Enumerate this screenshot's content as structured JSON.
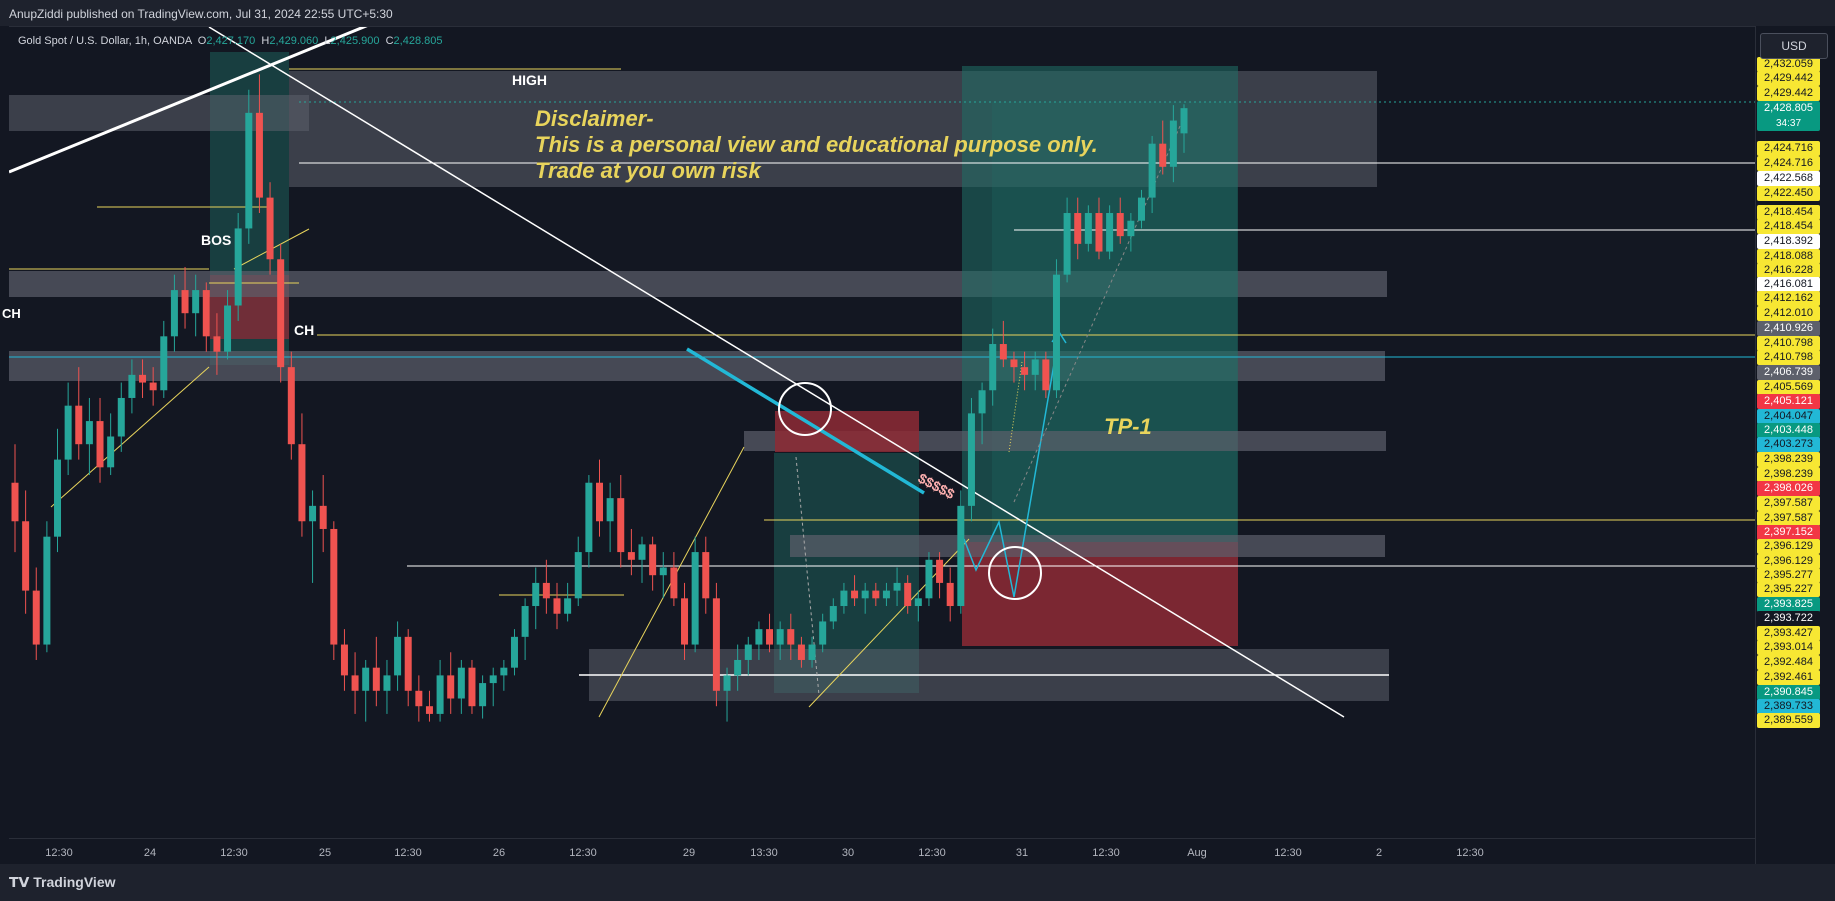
{
  "header": {
    "publisher": "AnupZiddi published on TradingView.com, Jul 31, 2024 22:55 UTC+5:30"
  },
  "legend": {
    "symbol": "Gold Spot / U.S. Dollar, 1h, OANDA",
    "o_label": "O",
    "o_value": "2,427.170",
    "h_label": "H",
    "h_value": "2,429.060",
    "l_label": "L",
    "l_value": "2,425.900",
    "c_label": "C",
    "c_value": "2,428.805"
  },
  "currency_button": "USD",
  "footer": {
    "brand": "TradingView"
  },
  "annotations": {
    "disclaimer_title": "Disclaimer-",
    "disclaimer_line1": "This is a personal view and educational purpose only.",
    "disclaimer_line2": "Trade at you own risk",
    "high": "HIGH",
    "bos": "BOS",
    "ch": "CH",
    "ch_left": "CH",
    "tp1": "TP-1",
    "liquidity": "$$$$$"
  },
  "colors": {
    "background": "#131722",
    "up_candle": "#26a69a",
    "down_candle": "#ef5350",
    "zone_gray": "#5d606b",
    "profit_zone": "#1f6f66",
    "loss_zone": "#8e2a35",
    "annotation_yellow": "#e8d45c",
    "trend_cyan": "#22b8d6"
  },
  "price_labels": [
    {
      "text": "2,432.059",
      "bg": "#f7e733",
      "fg": "#131722"
    },
    {
      "text": "2,429.442",
      "bg": "#f7e733",
      "fg": "#131722"
    },
    {
      "text": "2,429.442",
      "bg": "#f7e733",
      "fg": "#131722"
    },
    {
      "text": "2,428.805",
      "bg": "#089981",
      "fg": "#ffffff",
      "countdown": "34:37"
    },
    {
      "text": "2,424.716",
      "bg": "#f7e733",
      "fg": "#131722"
    },
    {
      "text": "2,424.716",
      "bg": "#f7e733",
      "fg": "#131722"
    },
    {
      "text": "2,422.568",
      "bg": "#ffffff",
      "fg": "#131722"
    },
    {
      "text": "2,422.450",
      "bg": "#f7e733",
      "fg": "#131722"
    },
    {
      "text": "2,418.454",
      "bg": "#f7e733",
      "fg": "#131722"
    },
    {
      "text": "2,418.454",
      "bg": "#f7e733",
      "fg": "#131722"
    },
    {
      "text": "2,418.392",
      "bg": "#ffffff",
      "fg": "#131722"
    },
    {
      "text": "2,418.088",
      "bg": "#f7e733",
      "fg": "#131722"
    },
    {
      "text": "2,416.228",
      "bg": "#f7e733",
      "fg": "#131722"
    },
    {
      "text": "2,416.081",
      "bg": "#ffffff",
      "fg": "#131722"
    },
    {
      "text": "2,412.162",
      "bg": "#f7e733",
      "fg": "#131722"
    },
    {
      "text": "2,412.010",
      "bg": "#f7e733",
      "fg": "#131722"
    },
    {
      "text": "2,410.926",
      "bg": "#5d606b",
      "fg": "#ffffff"
    },
    {
      "text": "2,410.798",
      "bg": "#f7e733",
      "fg": "#131722"
    },
    {
      "text": "2,410.798",
      "bg": "#f7e733",
      "fg": "#131722"
    },
    {
      "text": "2,406.739",
      "bg": "#5d606b",
      "fg": "#ffffff"
    },
    {
      "text": "2,405.569",
      "bg": "#f7e733",
      "fg": "#131722"
    },
    {
      "text": "2,405.121",
      "bg": "#f23645",
      "fg": "#ffffff"
    },
    {
      "text": "2,404.047",
      "bg": "#22b8d6",
      "fg": "#131722"
    },
    {
      "text": "2,403.448",
      "bg": "#089981",
      "fg": "#ffffff"
    },
    {
      "text": "2,403.273",
      "bg": "#22b8d6",
      "fg": "#131722"
    },
    {
      "text": "2,398.239",
      "bg": "#f7e733",
      "fg": "#131722"
    },
    {
      "text": "2,398.239",
      "bg": "#f7e733",
      "fg": "#131722"
    },
    {
      "text": "2,398.026",
      "bg": "#f23645",
      "fg": "#ffffff"
    },
    {
      "text": "2,397.587",
      "bg": "#f7e733",
      "fg": "#131722"
    },
    {
      "text": "2,397.587",
      "bg": "#f7e733",
      "fg": "#131722"
    },
    {
      "text": "2,397.152",
      "bg": "#f23645",
      "fg": "#ffffff"
    },
    {
      "text": "2,396.129",
      "bg": "#f7e733",
      "fg": "#131722"
    },
    {
      "text": "2,396.129",
      "bg": "#f7e733",
      "fg": "#131722"
    },
    {
      "text": "2,395.277",
      "bg": "#f7e733",
      "fg": "#131722"
    },
    {
      "text": "2,395.227",
      "bg": "#f7e733",
      "fg": "#131722"
    },
    {
      "text": "2,393.825",
      "bg": "#089981",
      "fg": "#ffffff"
    },
    {
      "text": "2,393.722",
      "bg": "#131722",
      "fg": "#ffffff"
    },
    {
      "text": "2,393.427",
      "bg": "#f7e733",
      "fg": "#131722"
    },
    {
      "text": "2,393.014",
      "bg": "#f7e733",
      "fg": "#131722"
    },
    {
      "text": "2,392.484",
      "bg": "#f7e733",
      "fg": "#131722"
    },
    {
      "text": "2,392.461",
      "bg": "#f7e733",
      "fg": "#131722"
    },
    {
      "text": "2,390.845",
      "bg": "#089981",
      "fg": "#ffffff"
    },
    {
      "text": "2,389.733",
      "bg": "#22b8d6",
      "fg": "#131722"
    },
    {
      "text": "2,389.559",
      "bg": "#f7e733",
      "fg": "#131722"
    }
  ],
  "chart_data": {
    "type": "candlestick",
    "symbol": "Gold Spot / U.S. Dollar",
    "interval": "1h",
    "exchange": "OANDA",
    "currency": "USD",
    "time_ticks": [
      "12:30",
      "24",
      "12:30",
      "25",
      "12:30",
      "26",
      "12:30",
      "29",
      "13:30",
      "30",
      "12:30",
      "31",
      "12:30",
      "Aug",
      "12:30",
      "2",
      "12:30"
    ],
    "last_close": 2428.805,
    "candles": [
      {
        "o": 2404.5,
        "h": 2407.0,
        "l": 2400.0,
        "c": 2402.0
      },
      {
        "o": 2402.0,
        "h": 2404.0,
        "l": 2396.0,
        "c": 2397.5
      },
      {
        "o": 2397.5,
        "h": 2399.0,
        "l": 2393.0,
        "c": 2394.0
      },
      {
        "o": 2394.0,
        "h": 2402.0,
        "l": 2393.5,
        "c": 2401.0
      },
      {
        "o": 2401.0,
        "h": 2408.0,
        "l": 2400.0,
        "c": 2406.0
      },
      {
        "o": 2406.0,
        "h": 2411.0,
        "l": 2405.0,
        "c": 2409.5
      },
      {
        "o": 2409.5,
        "h": 2412.0,
        "l": 2406.0,
        "c": 2407.0
      },
      {
        "o": 2407.0,
        "h": 2410.0,
        "l": 2405.0,
        "c": 2408.5
      },
      {
        "o": 2408.5,
        "h": 2410.0,
        "l": 2404.5,
        "c": 2405.5
      },
      {
        "o": 2405.5,
        "h": 2409.0,
        "l": 2405.0,
        "c": 2407.5
      },
      {
        "o": 2407.5,
        "h": 2411.0,
        "l": 2406.5,
        "c": 2410.0
      },
      {
        "o": 2410.0,
        "h": 2412.5,
        "l": 2409.0,
        "c": 2411.5
      },
      {
        "o": 2411.5,
        "h": 2412.5,
        "l": 2410.0,
        "c": 2411.0
      },
      {
        "o": 2411.0,
        "h": 2412.0,
        "l": 2409.5,
        "c": 2410.5
      },
      {
        "o": 2410.5,
        "h": 2415.0,
        "l": 2410.0,
        "c": 2414.0
      },
      {
        "o": 2414.0,
        "h": 2418.0,
        "l": 2413.0,
        "c": 2417.0
      },
      {
        "o": 2417.0,
        "h": 2418.5,
        "l": 2414.5,
        "c": 2415.5
      },
      {
        "o": 2415.5,
        "h": 2418.0,
        "l": 2414.0,
        "c": 2417.0
      },
      {
        "o": 2417.0,
        "h": 2417.5,
        "l": 2413.0,
        "c": 2414.0
      },
      {
        "o": 2414.0,
        "h": 2415.5,
        "l": 2411.5,
        "c": 2413.0
      },
      {
        "o": 2413.0,
        "h": 2417.0,
        "l": 2412.5,
        "c": 2416.0
      },
      {
        "o": 2416.0,
        "h": 2422.0,
        "l": 2415.0,
        "c": 2421.0
      },
      {
        "o": 2421.0,
        "h": 2430.0,
        "l": 2420.0,
        "c": 2428.5
      },
      {
        "o": 2428.5,
        "h": 2431.0,
        "l": 2422.0,
        "c": 2423.0
      },
      {
        "o": 2423.0,
        "h": 2424.0,
        "l": 2418.0,
        "c": 2419.0
      },
      {
        "o": 2419.0,
        "h": 2420.0,
        "l": 2411.0,
        "c": 2412.0
      },
      {
        "o": 2412.0,
        "h": 2413.0,
        "l": 2406.0,
        "c": 2407.0
      },
      {
        "o": 2407.0,
        "h": 2409.0,
        "l": 2401.0,
        "c": 2402.0
      },
      {
        "o": 2402.0,
        "h": 2404.0,
        "l": 2398.0,
        "c": 2403.0
      },
      {
        "o": 2403.0,
        "h": 2405.0,
        "l": 2400.0,
        "c": 2401.5
      },
      {
        "o": 2401.5,
        "h": 2402.0,
        "l": 2393.0,
        "c": 2394.0
      },
      {
        "o": 2394.0,
        "h": 2395.0,
        "l": 2391.0,
        "c": 2392.0
      },
      {
        "o": 2392.0,
        "h": 2393.5,
        "l": 2389.5,
        "c": 2391.0
      },
      {
        "o": 2391.0,
        "h": 2393.0,
        "l": 2389.0,
        "c": 2392.5
      },
      {
        "o": 2392.5,
        "h": 2394.5,
        "l": 2390.0,
        "c": 2391.0
      },
      {
        "o": 2391.0,
        "h": 2393.0,
        "l": 2389.5,
        "c": 2392.0
      },
      {
        "o": 2392.0,
        "h": 2395.5,
        "l": 2391.0,
        "c": 2394.5
      },
      {
        "o": 2394.5,
        "h": 2395.0,
        "l": 2390.0,
        "c": 2391.0
      },
      {
        "o": 2391.0,
        "h": 2392.0,
        "l": 2389.0,
        "c": 2390.0
      },
      {
        "o": 2390.0,
        "h": 2391.0,
        "l": 2389.0,
        "c": 2389.5
      },
      {
        "o": 2389.5,
        "h": 2393.0,
        "l": 2389.0,
        "c": 2392.0
      },
      {
        "o": 2392.0,
        "h": 2393.5,
        "l": 2389.5,
        "c": 2390.5
      },
      {
        "o": 2390.5,
        "h": 2393.0,
        "l": 2389.5,
        "c": 2392.5
      },
      {
        "o": 2392.5,
        "h": 2393.0,
        "l": 2389.5,
        "c": 2390.0
      },
      {
        "o": 2390.0,
        "h": 2392.0,
        "l": 2389.2,
        "c": 2391.5
      },
      {
        "o": 2391.5,
        "h": 2392.5,
        "l": 2390.0,
        "c": 2392.0
      },
      {
        "o": 2392.0,
        "h": 2393.0,
        "l": 2391.0,
        "c": 2392.5
      },
      {
        "o": 2392.5,
        "h": 2395.0,
        "l": 2392.0,
        "c": 2394.5
      },
      {
        "o": 2394.5,
        "h": 2397.0,
        "l": 2393.0,
        "c": 2396.5
      },
      {
        "o": 2396.5,
        "h": 2399.0,
        "l": 2395.0,
        "c": 2398.0
      },
      {
        "o": 2398.0,
        "h": 2399.5,
        "l": 2396.0,
        "c": 2397.0
      },
      {
        "o": 2397.0,
        "h": 2398.0,
        "l": 2395.0,
        "c": 2396.0
      },
      {
        "o": 2396.0,
        "h": 2398.0,
        "l": 2395.5,
        "c": 2397.0
      },
      {
        "o": 2397.0,
        "h": 2401.0,
        "l": 2396.5,
        "c": 2400.0
      },
      {
        "o": 2400.0,
        "h": 2405.0,
        "l": 2399.0,
        "c": 2404.5
      },
      {
        "o": 2404.5,
        "h": 2406.0,
        "l": 2401.0,
        "c": 2402.0
      },
      {
        "o": 2402.0,
        "h": 2404.5,
        "l": 2400.0,
        "c": 2403.5
      },
      {
        "o": 2403.5,
        "h": 2405.0,
        "l": 2399.0,
        "c": 2400.0
      },
      {
        "o": 2400.0,
        "h": 2401.5,
        "l": 2398.5,
        "c": 2399.5
      },
      {
        "o": 2399.5,
        "h": 2401.0,
        "l": 2398.0,
        "c": 2400.5
      },
      {
        "o": 2400.5,
        "h": 2401.0,
        "l": 2397.5,
        "c": 2398.5
      },
      {
        "o": 2398.5,
        "h": 2400.0,
        "l": 2397.0,
        "c": 2399.0
      },
      {
        "o": 2399.0,
        "h": 2400.0,
        "l": 2396.5,
        "c": 2397.0
      },
      {
        "o": 2397.0,
        "h": 2398.0,
        "l": 2393.0,
        "c": 2394.0
      },
      {
        "o": 2394.0,
        "h": 2401.0,
        "l": 2393.5,
        "c": 2400.0
      },
      {
        "o": 2400.0,
        "h": 2401.0,
        "l": 2396.0,
        "c": 2397.0
      },
      {
        "o": 2397.0,
        "h": 2398.0,
        "l": 2390.0,
        "c": 2391.0
      },
      {
        "o": 2391.0,
        "h": 2392.5,
        "l": 2389.0,
        "c": 2392.0
      },
      {
        "o": 2392.0,
        "h": 2394.0,
        "l": 2391.0,
        "c": 2393.0
      },
      {
        "o": 2393.0,
        "h": 2394.5,
        "l": 2392.0,
        "c": 2394.0
      },
      {
        "o": 2394.0,
        "h": 2395.5,
        "l": 2393.0,
        "c": 2395.0
      },
      {
        "o": 2395.0,
        "h": 2396.0,
        "l": 2393.5,
        "c": 2394.0
      },
      {
        "o": 2394.0,
        "h": 2395.5,
        "l": 2393.0,
        "c": 2395.0
      },
      {
        "o": 2395.0,
        "h": 2396.0,
        "l": 2393.0,
        "c": 2394.0
      },
      {
        "o": 2394.0,
        "h": 2394.5,
        "l": 2392.5,
        "c": 2393.0
      },
      {
        "o": 2393.0,
        "h": 2394.5,
        "l": 2392.5,
        "c": 2394.0
      },
      {
        "o": 2394.0,
        "h": 2396.0,
        "l": 2393.5,
        "c": 2395.5
      },
      {
        "o": 2395.5,
        "h": 2397.0,
        "l": 2395.0,
        "c": 2396.5
      },
      {
        "o": 2396.5,
        "h": 2398.0,
        "l": 2396.0,
        "c": 2397.5
      },
      {
        "o": 2397.5,
        "h": 2398.5,
        "l": 2396.5,
        "c": 2397.0
      },
      {
        "o": 2397.0,
        "h": 2398.0,
        "l": 2396.0,
        "c": 2397.5
      },
      {
        "o": 2397.5,
        "h": 2398.0,
        "l": 2396.5,
        "c": 2397.0
      },
      {
        "o": 2397.0,
        "h": 2398.0,
        "l": 2396.5,
        "c": 2397.5
      },
      {
        "o": 2397.5,
        "h": 2399.0,
        "l": 2396.5,
        "c": 2398.0
      },
      {
        "o": 2398.0,
        "h": 2398.5,
        "l": 2396.0,
        "c": 2396.5
      },
      {
        "o": 2396.5,
        "h": 2397.5,
        "l": 2395.5,
        "c": 2397.0
      },
      {
        "o": 2397.0,
        "h": 2400.0,
        "l": 2396.5,
        "c": 2399.5
      },
      {
        "o": 2399.5,
        "h": 2400.0,
        "l": 2397.0,
        "c": 2398.0
      },
      {
        "o": 2398.0,
        "h": 2399.0,
        "l": 2395.5,
        "c": 2396.5
      },
      {
        "o": 2396.5,
        "h": 2404.0,
        "l": 2396.0,
        "c": 2403.0
      },
      {
        "o": 2403.0,
        "h": 2410.0,
        "l": 2402.0,
        "c": 2409.0
      },
      {
        "o": 2409.0,
        "h": 2411.0,
        "l": 2407.0,
        "c": 2410.5
      },
      {
        "o": 2410.5,
        "h": 2414.5,
        "l": 2409.5,
        "c": 2413.5
      },
      {
        "o": 2413.5,
        "h": 2415.0,
        "l": 2412.0,
        "c": 2412.5
      },
      {
        "o": 2412.5,
        "h": 2413.0,
        "l": 2411.0,
        "c": 2412.0
      },
      {
        "o": 2412.0,
        "h": 2413.0,
        "l": 2410.5,
        "c": 2411.5
      },
      {
        "o": 2411.5,
        "h": 2413.0,
        "l": 2410.5,
        "c": 2412.5
      },
      {
        "o": 2412.5,
        "h": 2413.0,
        "l": 2410.0,
        "c": 2410.5
      },
      {
        "o": 2410.5,
        "h": 2419.0,
        "l": 2410.0,
        "c": 2418.0
      },
      {
        "o": 2418.0,
        "h": 2423.0,
        "l": 2417.5,
        "c": 2422.0
      },
      {
        "o": 2422.0,
        "h": 2423.0,
        "l": 2419.0,
        "c": 2420.0
      },
      {
        "o": 2420.0,
        "h": 2422.5,
        "l": 2419.5,
        "c": 2422.0
      },
      {
        "o": 2422.0,
        "h": 2423.0,
        "l": 2419.0,
        "c": 2419.5
      },
      {
        "o": 2419.5,
        "h": 2422.5,
        "l": 2419.0,
        "c": 2422.0
      },
      {
        "o": 2422.0,
        "h": 2423.0,
        "l": 2420.0,
        "c": 2420.5
      },
      {
        "o": 2420.5,
        "h": 2422.0,
        "l": 2419.5,
        "c": 2421.5
      },
      {
        "o": 2421.5,
        "h": 2423.5,
        "l": 2421.0,
        "c": 2423.0
      },
      {
        "o": 2423.0,
        "h": 2427.0,
        "l": 2422.0,
        "c": 2426.5
      },
      {
        "o": 2426.5,
        "h": 2428.0,
        "l": 2424.5,
        "c": 2425.0
      },
      {
        "o": 2425.0,
        "h": 2429.0,
        "l": 2424.0,
        "c": 2428.0
      },
      {
        "o": 2427.17,
        "h": 2429.06,
        "l": 2425.9,
        "c": 2428.805
      }
    ]
  }
}
